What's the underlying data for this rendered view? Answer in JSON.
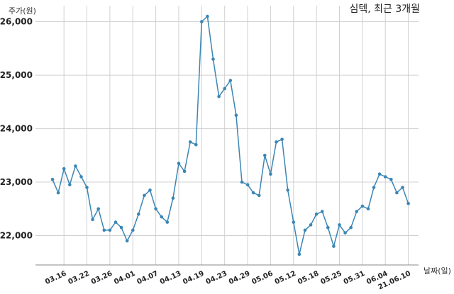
{
  "chart_data": {
    "type": "line",
    "title": "심텍, 최근 3개월",
    "ylabel": "주가(원)",
    "xlabel": "날짜(일)",
    "ylim": [
      21450,
      26300
    ],
    "yticks": [
      22000,
      23000,
      24000,
      25000,
      26000
    ],
    "ytick_labels": [
      "22,000",
      "23,000",
      "24,000",
      "25,000",
      "26,000"
    ],
    "x_tick_labels": [
      "03.16",
      "03.22",
      "03.26",
      "04.01",
      "04.07",
      "04.13",
      "04.19",
      "04.23",
      "04.29",
      "05.06",
      "05.12",
      "05.18",
      "05.25",
      "05.31",
      "06.04",
      "21.06.10"
    ],
    "x_tick_index": [
      2,
      6,
      10,
      14,
      18,
      22,
      26,
      30,
      34,
      38,
      42,
      46,
      50,
      54,
      58,
      62
    ],
    "grid": true,
    "line_color": "#3a86b4",
    "values": [
      23050,
      22800,
      23250,
      22950,
      23300,
      23100,
      22900,
      22300,
      22500,
      22100,
      22100,
      22250,
      22150,
      21900,
      22100,
      22400,
      22750,
      22850,
      22500,
      22350,
      22250,
      22700,
      23350,
      23200,
      23750,
      23700,
      26000,
      26100,
      25300,
      24600,
      24750,
      24900,
      24250,
      23000,
      22950,
      22800,
      22750,
      23500,
      23150,
      23750,
      23800,
      22850,
      22250,
      21650,
      22100,
      22200,
      22400,
      22450,
      22150,
      21800,
      22200,
      22050,
      22150,
      22450,
      22550,
      22500,
      22900,
      23150,
      23100,
      23050,
      22800,
      22900,
      22600
    ]
  }
}
